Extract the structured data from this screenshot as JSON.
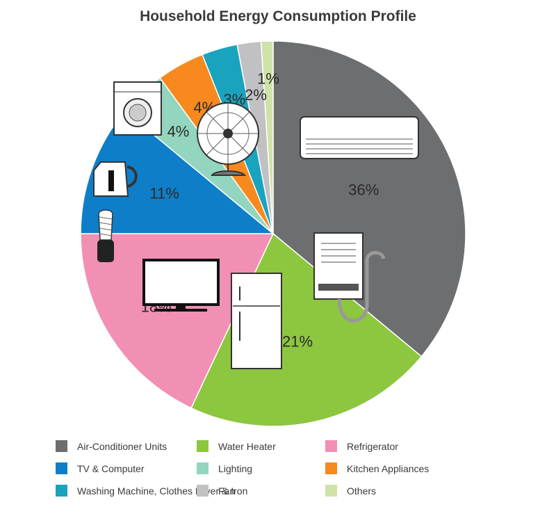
{
  "chart_data": {
    "type": "pie",
    "title": "Household Energy Consumption Profile",
    "slices": [
      {
        "name": "Air-Conditioner Units",
        "value": 36,
        "label": "36%",
        "color": "#6d6e70",
        "icon": "air-conditioner-icon"
      },
      {
        "name": "Water Heater",
        "value": 21,
        "label": "21%",
        "color": "#8dc63f",
        "icon": "water-heater-icon"
      },
      {
        "name": "Refrigerator",
        "value": 18,
        "label": "18%",
        "color": "#f28fb5",
        "icon": "refrigerator-icon"
      },
      {
        "name": "TV & Computer",
        "value": 11,
        "label": "11%",
        "color": "#0f7ec8",
        "icon": "tv-icon"
      },
      {
        "name": "Lighting",
        "value": 4,
        "label": "4%",
        "color": "#93d5bf",
        "icon": "light-bulb-icon"
      },
      {
        "name": "Kitchen Appliances",
        "value": 4,
        "label": "4%",
        "color": "#f7891f",
        "icon": "kettle-icon"
      },
      {
        "name": "Washing Machine, Clothes Dryer & Iron",
        "value": 3,
        "label": "3%",
        "color": "#1aa3bf",
        "icon": "washing-machine-icon"
      },
      {
        "name": "Fan",
        "value": 2,
        "label": "2%",
        "color": "#c1c1c4",
        "icon": "fan-icon"
      },
      {
        "name": "Others",
        "value": 1,
        "label": "1%",
        "color": "#cfe3a8",
        "icon": ""
      }
    ],
    "legend_position": "bottom",
    "legend_order": [
      "Air-Conditioner Units",
      "TV & Computer",
      "Washing Machine, Clothes Dryer & Iron",
      "Water Heater",
      "Lighting",
      "Fan",
      "Refrigerator",
      "Kitchen Appliances",
      "Others"
    ]
  }
}
